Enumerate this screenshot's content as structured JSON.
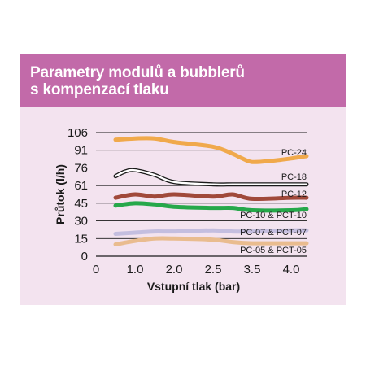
{
  "chart_data": {
    "type": "line",
    "title": "Parametry modulů a bubblerů\ns kompenzací tlaku",
    "xlabel": "Vstupní tlak (bar)",
    "ylabel": "Průtok (l/h)",
    "x_ticks": [
      "0",
      "1.0",
      "2.0",
      "2.5",
      "3.5",
      "4.0"
    ],
    "y_ticks": [
      "106",
      "91",
      "76",
      "61",
      "45",
      "30",
      "15",
      "0"
    ],
    "grid": "horizontal",
    "series": [
      {
        "name": "PC-24",
        "color": "#f0a94b",
        "outline": false,
        "x": [
          0.5,
          1.0,
          1.5,
          2.0,
          2.5,
          3.0,
          3.25,
          3.5,
          3.75,
          4.0,
          4.5
        ],
        "y": [
          100,
          101,
          101,
          98,
          94,
          88,
          84,
          81,
          82,
          84,
          86
        ]
      },
      {
        "name": "PC-18",
        "color": "#1a1a1a",
        "outline": true,
        "x": [
          0.5,
          0.75,
          1.0,
          1.5,
          2.0,
          2.5,
          3.0,
          3.5,
          4.0,
          4.5
        ],
        "y": [
          69,
          73,
          74,
          70,
          64,
          62,
          62,
          62,
          62,
          62
        ]
      },
      {
        "name": "PC-12",
        "color": "#a0493a",
        "outline": false,
        "x": [
          0.5,
          1.0,
          1.5,
          2.0,
          2.5,
          3.0,
          3.5,
          4.0,
          4.5
        ],
        "y": [
          50,
          53,
          51,
          53,
          51,
          53,
          49,
          50,
          50
        ]
      },
      {
        "name": "PC-10 & PCT-10",
        "color": "#26a84a",
        "outline": false,
        "x": [
          0.5,
          1.0,
          1.5,
          2.0,
          2.5,
          3.0,
          3.5,
          4.0,
          4.5
        ],
        "y": [
          43,
          45,
          44,
          42,
          41,
          41,
          39,
          39,
          40
        ]
      },
      {
        "name": "PC-07 & PCT-07",
        "color": "#c4bedf",
        "outline": false,
        "x": [
          0.5,
          1.0,
          1.5,
          2.0,
          2.5,
          3.0,
          3.5,
          4.0,
          4.5
        ],
        "y": [
          19,
          20,
          21,
          21,
          22,
          21,
          21,
          22,
          22
        ]
      },
      {
        "name": "PC-05 & PCT-05",
        "color": "#e9bc8f",
        "outline": false,
        "x": [
          0.5,
          1.0,
          1.5,
          2.0,
          2.5,
          3.0,
          3.5,
          4.0,
          4.5
        ],
        "y": [
          10,
          13,
          15,
          15,
          14,
          12,
          11,
          11,
          11
        ]
      }
    ]
  }
}
